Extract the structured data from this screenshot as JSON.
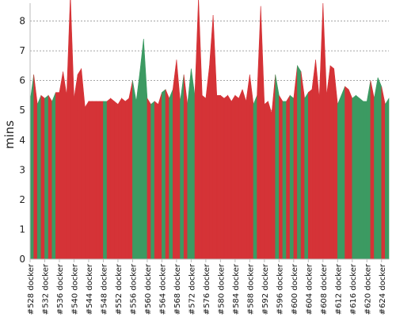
{
  "chart_data": {
    "type": "area",
    "title": "",
    "xlabel": "",
    "ylabel": "mins",
    "ylim": [
      0,
      8.6
    ],
    "yticks": [
      0,
      1,
      2,
      3,
      4,
      5,
      6,
      7,
      8
    ],
    "grid": true,
    "x": [
      "#528 docker",
      "#529 docker",
      "#530 docker",
      "#531 docker",
      "#532 docker",
      "#533 docker",
      "#534 docker",
      "#535 docker",
      "#536 docker",
      "#537 docker",
      "#538 docker",
      "#539 docker",
      "#540 docker",
      "#541 docker",
      "#542 docker",
      "#543 docker",
      "#544 docker",
      "#545 docker",
      "#546 docker",
      "#547 docker",
      "#548 docker",
      "#549 docker",
      "#550 docker",
      "#551 docker",
      "#552 docker",
      "#553 docker",
      "#554 docker",
      "#555 docker",
      "#556 docker",
      "#557 docker",
      "#558 docker",
      "#559 docker",
      "#560 docker",
      "#561 docker",
      "#562 docker",
      "#563 docker",
      "#564 docker",
      "#565 docker",
      "#566 docker",
      "#567 docker",
      "#568 docker",
      "#569 docker",
      "#570 docker",
      "#571 docker",
      "#572 docker",
      "#573 docker",
      "#574 docker",
      "#575 docker",
      "#576 docker",
      "#577 docker",
      "#578 docker",
      "#579 docker",
      "#580 docker",
      "#581 docker",
      "#582 docker",
      "#583 docker",
      "#584 docker",
      "#585 docker",
      "#586 docker",
      "#587 docker",
      "#588 docker",
      "#589 docker",
      "#590 docker",
      "#591 docker",
      "#592 docker",
      "#593 docker",
      "#594 docker",
      "#595 docker",
      "#596 docker",
      "#597 docker",
      "#598 docker",
      "#599 docker",
      "#600 docker",
      "#601 docker",
      "#602 docker",
      "#603 docker",
      "#604 docker",
      "#605 docker",
      "#606 docker",
      "#607 docker",
      "#608 docker",
      "#609 docker",
      "#610 docker",
      "#611 docker",
      "#612 docker",
      "#613 docker",
      "#614 docker",
      "#615 docker",
      "#616 docker",
      "#617 docker",
      "#618 docker",
      "#619 docker",
      "#620 docker",
      "#621 docker",
      "#622 docker",
      "#623 docker",
      "#624 docker",
      "#625 docker",
      "#626 docker"
    ],
    "tick_labels_shown": [
      "#528 docker",
      "#532 docker",
      "#536 docker",
      "#540 docker",
      "#544 docker",
      "#548 docker",
      "#552 docker",
      "#556 docker",
      "#560 docker",
      "#564 docker",
      "#568 docker",
      "#572 docker",
      "#576 docker",
      "#580 docker",
      "#584 docker",
      "#588 docker",
      "#592 docker",
      "#596 docker",
      "#600 docker",
      "#604 docker",
      "#608 docker",
      "#612 docker",
      "#616 docker",
      "#620 docker",
      "#624 docker"
    ],
    "values": [
      5.3,
      6.2,
      5.2,
      5.5,
      5.4,
      5.5,
      5.3,
      5.6,
      5.6,
      6.3,
      5.5,
      8.9,
      5.4,
      6.2,
      6.4,
      5.1,
      5.3,
      5.3,
      5.3,
      5.3,
      5.3,
      5.3,
      5.4,
      5.3,
      5.2,
      5.4,
      5.3,
      5.4,
      6.0,
      5.3,
      6.3,
      7.4,
      5.4,
      5.2,
      5.3,
      5.2,
      5.6,
      5.7,
      5.4,
      5.7,
      6.7,
      5.3,
      6.2,
      5.2,
      6.4,
      5.5,
      8.8,
      5.5,
      5.4,
      6.5,
      8.2,
      5.5,
      5.5,
      5.4,
      5.5,
      5.3,
      5.5,
      5.4,
      5.7,
      5.3,
      6.2,
      5.2,
      5.5,
      8.5,
      5.2,
      5.3,
      4.9,
      6.2,
      5.5,
      5.3,
      5.3,
      5.5,
      5.4,
      6.5,
      6.3,
      5.4,
      5.6,
      5.7,
      6.7,
      5.4,
      8.6,
      5.5,
      6.5,
      6.4,
      5.2,
      5.5,
      5.8,
      5.7,
      5.4,
      5.5,
      5.4,
      5.3,
      5.3,
      6.0,
      5.4,
      6.1,
      5.8,
      5.2,
      5.4
    ],
    "status": [
      "s",
      "f",
      "s",
      "f",
      "s",
      "f",
      "s",
      "f",
      "f",
      "f",
      "f",
      "f",
      "f",
      "f",
      "f",
      "f",
      "f",
      "f",
      "f",
      "f",
      "s",
      "f",
      "f",
      "f",
      "f",
      "f",
      "f",
      "f",
      "s",
      "s",
      "s",
      "s",
      "f",
      "s",
      "f",
      "f",
      "s",
      "f",
      "s",
      "f",
      "f",
      "s",
      "f",
      "s",
      "s",
      "f",
      "f",
      "f",
      "f",
      "f",
      "f",
      "f",
      "f",
      "f",
      "f",
      "f",
      "f",
      "f",
      "f",
      "f",
      "f",
      "s",
      "f",
      "f",
      "f",
      "f",
      "f",
      "s",
      "f",
      "s",
      "f",
      "s",
      "f",
      "s",
      "f",
      "s",
      "f",
      "f",
      "f",
      "f",
      "f",
      "f",
      "f",
      "f",
      "s",
      "s",
      "f",
      "f",
      "s",
      "s",
      "s",
      "s",
      "s",
      "f",
      "s",
      "s",
      "f",
      "s",
      "s"
    ],
    "colors": {
      "success": "#3c9a62",
      "failure": "#d53337",
      "grid": "#888888",
      "axis": "#bbbbbb"
    }
  }
}
